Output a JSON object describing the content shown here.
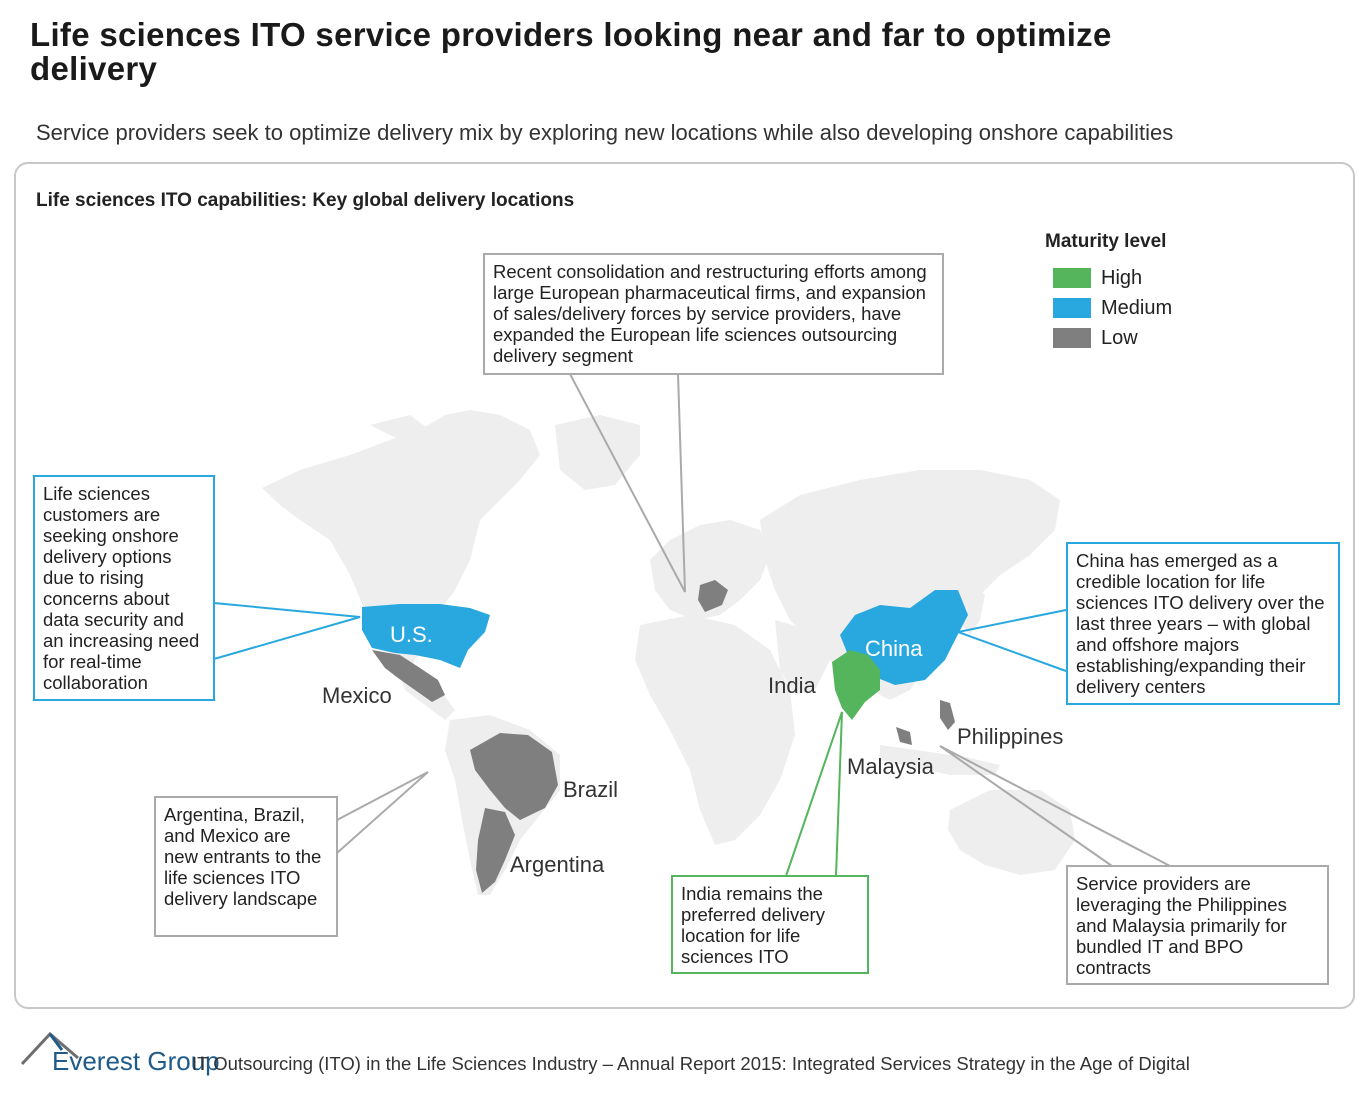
{
  "header": {
    "title": "Life sciences ITO service providers looking near and far to optimize delivery",
    "subtitle": "Service providers seek to optimize delivery mix by exploring new locations while also developing onshore capabilities"
  },
  "panel": {
    "title": "Life sciences ITO capabilities: Key global delivery locations"
  },
  "legend": {
    "title": "Maturity level",
    "items": [
      {
        "label": "High",
        "color": "#54b55d"
      },
      {
        "label": "Medium",
        "color": "#29a8e0"
      },
      {
        "label": "Low",
        "color": "#7f7f7f"
      }
    ]
  },
  "map": {
    "base_color": "#eeeeee",
    "locations": [
      {
        "label": "U.S.",
        "maturity": "Medium"
      },
      {
        "label": "China",
        "maturity": "Medium"
      },
      {
        "label": "India",
        "maturity": "High"
      },
      {
        "label": "Mexico",
        "maturity": "Low"
      },
      {
        "label": "Brazil",
        "maturity": "Low"
      },
      {
        "label": "Argentina",
        "maturity": "Low"
      },
      {
        "label": "Philippines",
        "maturity": "Low"
      },
      {
        "label": "Malaysia",
        "maturity": "Low"
      }
    ]
  },
  "callouts": {
    "europe": "Recent consolidation and restructuring efforts among large European pharmaceutical firms, and expansion of sales/delivery forces by service providers, have expanded the European life sciences outsourcing delivery segment",
    "us": "Life sciences customers are seeking onshore delivery options due to rising concerns about data security and an increasing need for real-time collaboration",
    "china": "China has emerged as a credible location for life sciences ITO delivery over the last three years – with global and offshore majors establishing/expanding their delivery centers",
    "latam": "Argentina, Brazil, and Mexico are new entrants to the life sciences ITO delivery landscape",
    "india": "India remains the preferred delivery location for life sciences ITO",
    "sea": "Service providers are leveraging the Philippines and Malaysia primarily for bundled IT and BPO contracts"
  },
  "footer": {
    "logo": "Everest Group",
    "text": "IT Outsourcing (ITO) in the Life Sciences Industry – Annual Report 2015: Integrated Services Strategy in the Age of Digital"
  }
}
